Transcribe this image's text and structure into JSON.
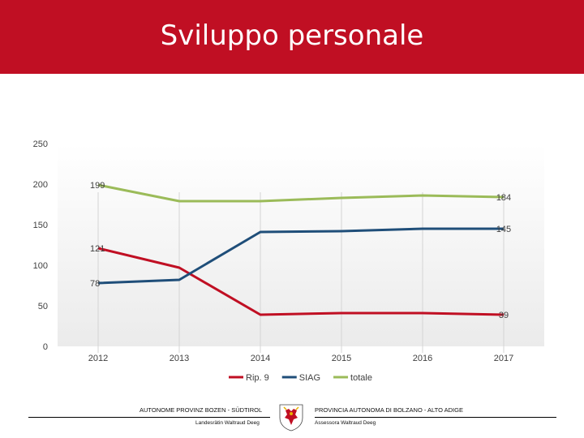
{
  "header": {
    "title": "Sviluppo personale"
  },
  "colors": {
    "header_bg": "#c00f23",
    "rip9": "#c00f23",
    "siag": "#1f4e79",
    "totale": "#9bbb59"
  },
  "footer": {
    "left_title": "AUTONOME PROVINZ BOZEN - SÜDTIROL",
    "left_sub": "Landesrätin Waltraud Deeg",
    "right_title": "PROVINCIA AUTONOMA DI BOLZANO - ALTO ADIGE",
    "right_sub": "Assessora Waltraud Deeg",
    "crest_icon": "coat-of-arms-icon"
  },
  "chart_data": {
    "type": "line",
    "x": [
      "2012",
      "2013",
      "2014",
      "2015",
      "2016",
      "2017"
    ],
    "ylim": [
      0,
      250
    ],
    "yticks": [
      0,
      50,
      100,
      150,
      200,
      250
    ],
    "grid": false,
    "legend_position": "bottom",
    "series": [
      {
        "name": "Rip. 9",
        "color": "#c00f23",
        "values": [
          121,
          97,
          39,
          41,
          41,
          39
        ],
        "labels": {
          "0": "121",
          "5": "39"
        }
      },
      {
        "name": "SIAG",
        "color": "#1f4e79",
        "values": [
          78,
          82,
          141,
          142,
          145,
          145
        ],
        "labels": {
          "0": "78",
          "5": "145"
        }
      },
      {
        "name": "totale",
        "color": "#9bbb59",
        "values": [
          199,
          179,
          179,
          183,
          186,
          184
        ],
        "labels": {
          "0": "199",
          "5": "184"
        }
      }
    ]
  }
}
